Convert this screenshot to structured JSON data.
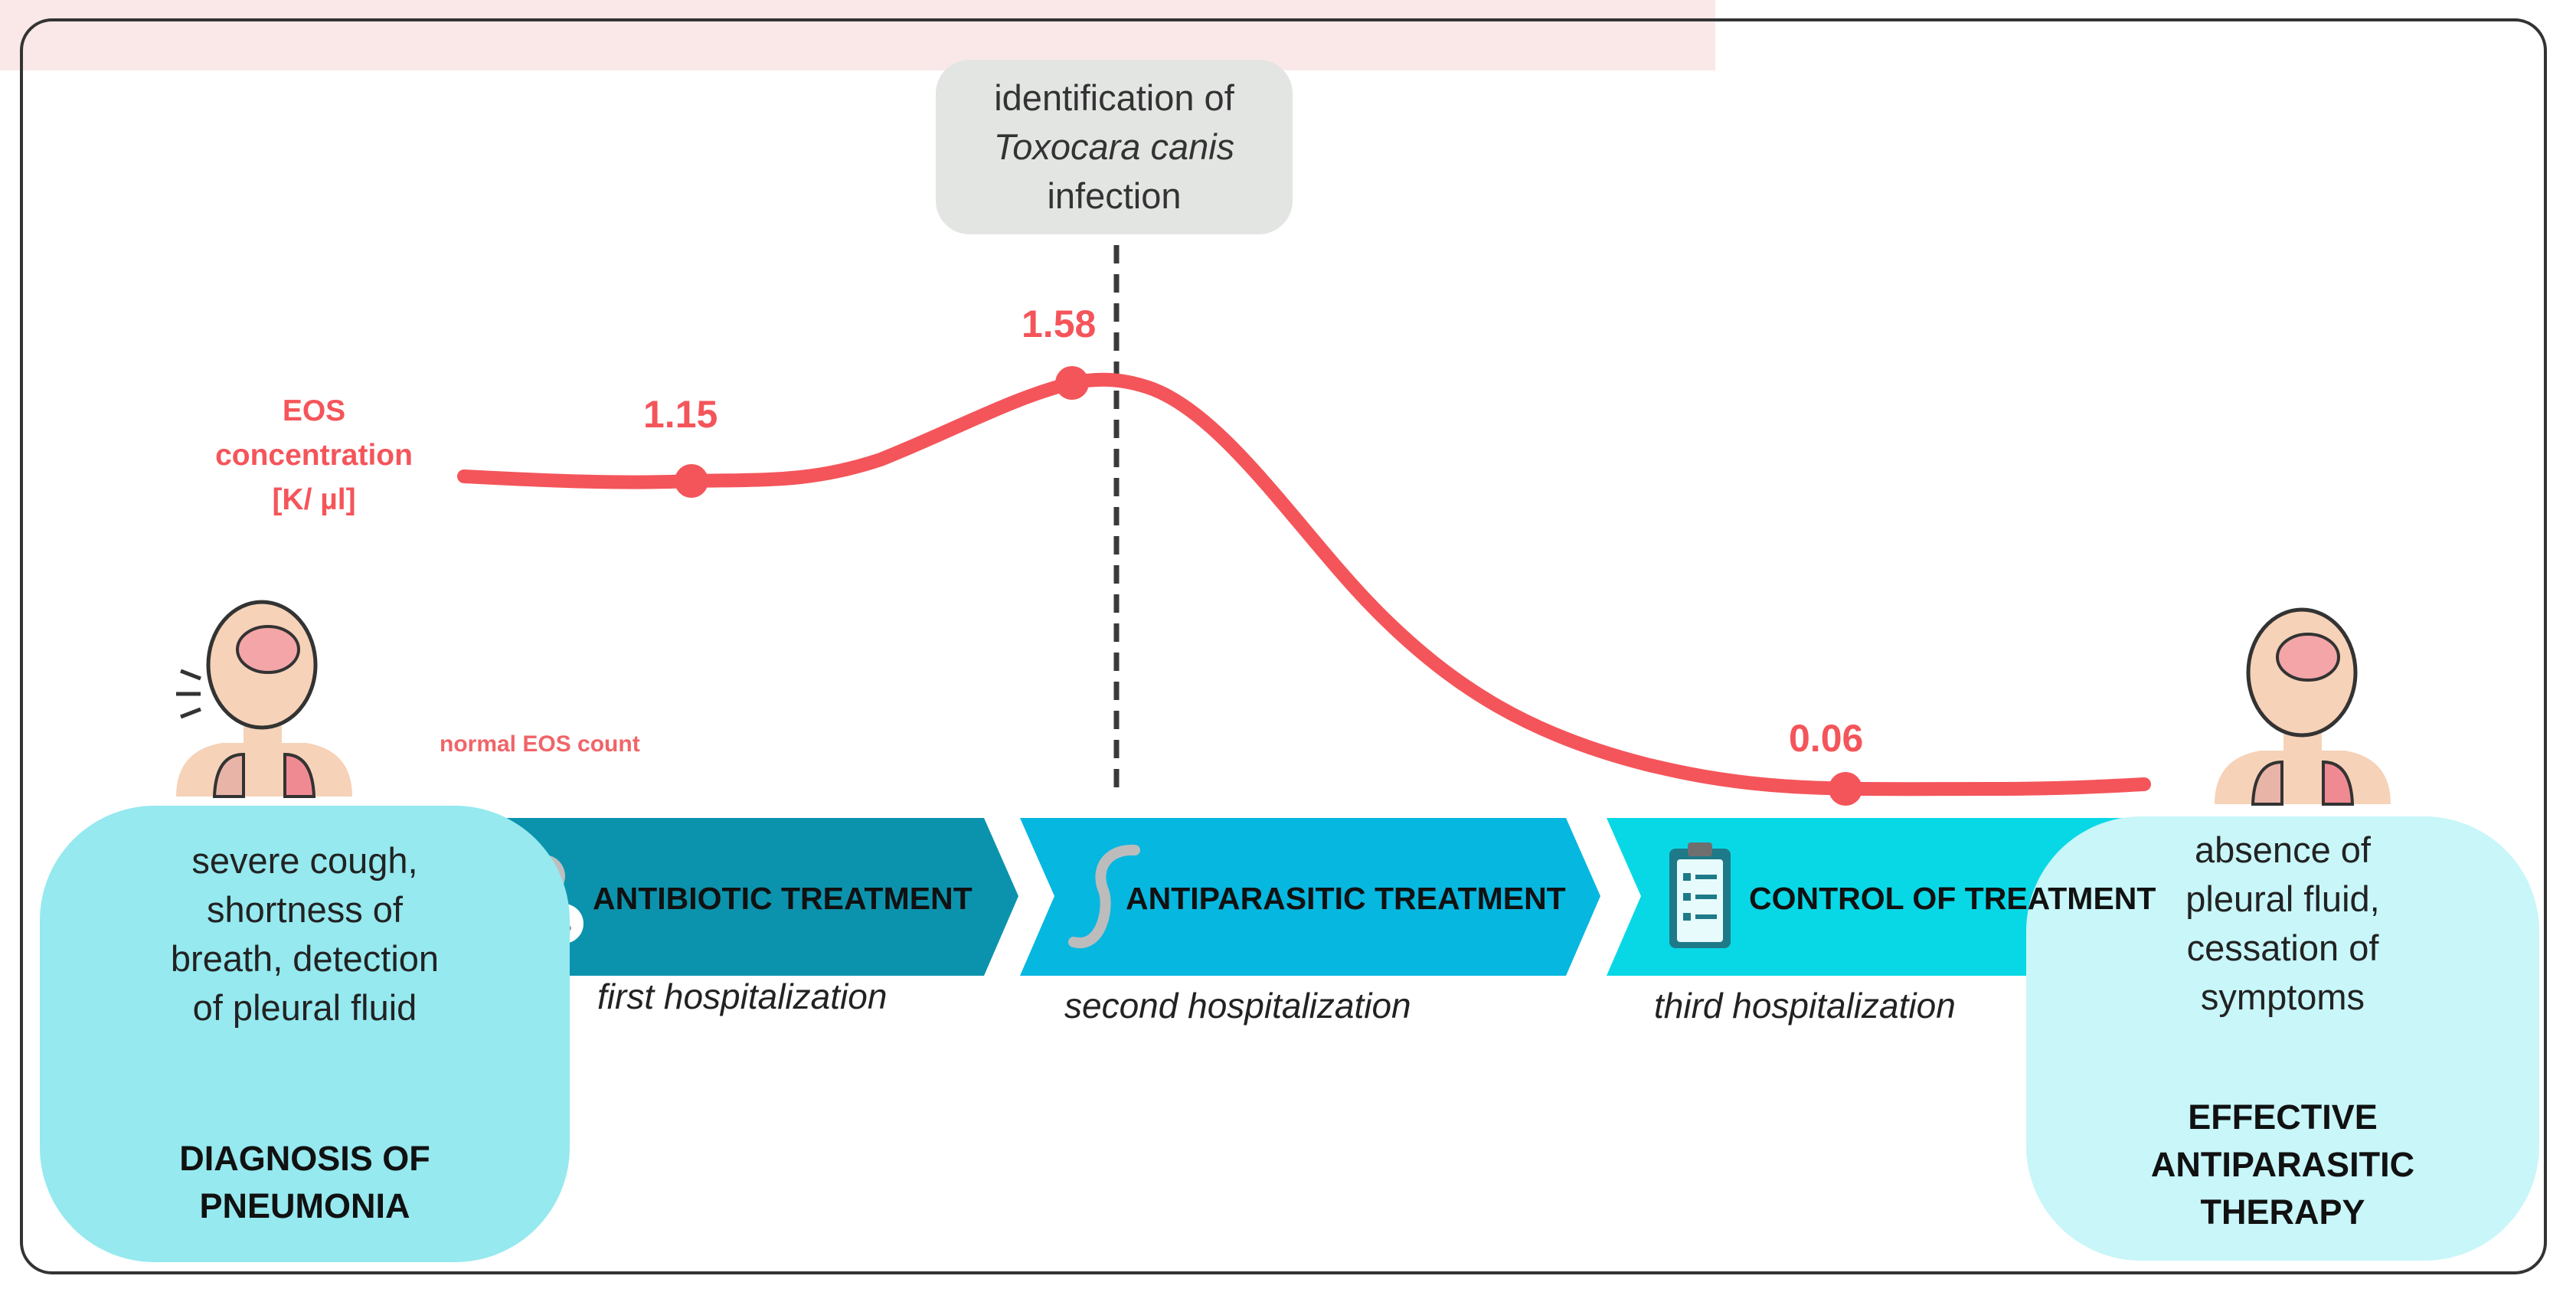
{
  "callout": {
    "line1": "identification of",
    "line2": "Toxocara canis",
    "line3": "infection"
  },
  "y_label": "EOS\nconcentration\n[K/ µl]",
  "normal_band_label": "normal EOS count",
  "chart_data": {
    "type": "line",
    "ylabel": "EOS concentration [K/ µl]",
    "points": [
      {
        "label": "first hospitalization",
        "value": 1.15
      },
      {
        "label": "identification of Toxocara canis infection",
        "value": 1.58
      },
      {
        "label": "third hospitalization",
        "value": 0.06
      }
    ],
    "value_labels": [
      "1.15",
      "1.58",
      "0.06"
    ]
  },
  "stages": [
    {
      "title": "ANTIBIOTIC TREATMENT",
      "icon": "bacteria-icon",
      "subtitle": "first hospitalization",
      "color": "#0b93ad"
    },
    {
      "title": "ANTIPARASITIC TREATMENT",
      "icon": "worm-icon",
      "subtitle": "second hospitalization",
      "color": "#06b7e0"
    },
    {
      "title": "CONTROL OF TREATMENT",
      "icon": "clipboard-icon",
      "subtitle": "third hospitalization",
      "color": "#08d8e6"
    }
  ],
  "left_box": {
    "symptoms": "severe cough,\nshortness of\nbreath, detection\nof pleural fluid",
    "result": "DIAGNOSIS OF\nPNEUMONIA",
    "arrow_color": "#f03a3f"
  },
  "right_box": {
    "symptoms": "absence of\npleural fluid,\ncessation of\nsymptoms",
    "result": "EFFECTIVE\nANTIPARASITIC\nTHERAPY",
    "arrow_color": "#39d34a"
  },
  "colors": {
    "curve": "#f4555a",
    "dashed_line": "#3a3a3a",
    "normal_band": "#fae8e8"
  }
}
